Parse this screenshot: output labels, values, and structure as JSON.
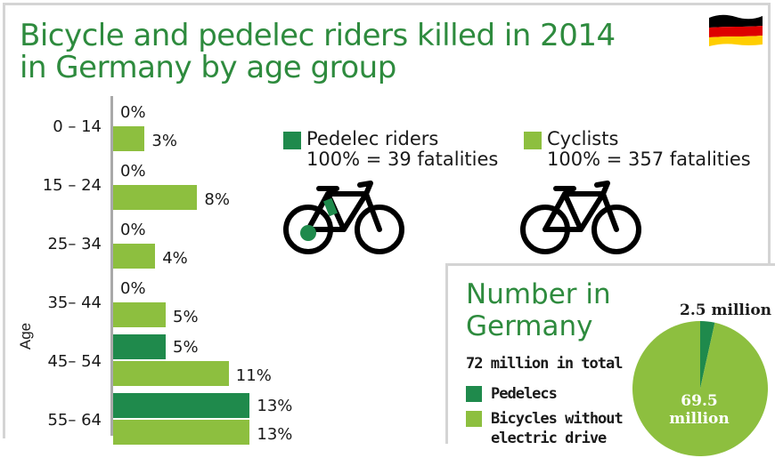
{
  "title_lines": [
    "Bicycle and pedelec riders killed in 2014",
    "in Germany by age group"
  ],
  "colors": {
    "pedelec": "#1f8a4c",
    "cyclist": "#8dbf3f",
    "title": "#2e8b3e"
  },
  "chart_data": {
    "type": "bar",
    "orientation": "horizontal",
    "ylabel": "Age",
    "unit": "%",
    "categories": [
      "0 – 14",
      "15 – 24",
      "25– 34",
      "35– 44",
      "45– 54",
      "55– 64"
    ],
    "series": [
      {
        "name": "Pedelec riders",
        "values": [
          0,
          0,
          0,
          0,
          5,
          13
        ]
      },
      {
        "name": "Cyclists",
        "values": [
          3,
          8,
          4,
          5,
          11,
          13
        ]
      }
    ],
    "value_labels": {
      "pedelec": [
        "0%",
        "0%",
        "0%",
        "0%",
        "5%",
        "13%"
      ],
      "cyclist": [
        "3%",
        "8%",
        "4%",
        "5%",
        "11%",
        "13%"
      ]
    }
  },
  "legend": {
    "pedelec": {
      "label": "Pedelec riders",
      "note": "100% = 39 fatalities",
      "icon": "pedelec-bike-icon"
    },
    "cyclist": {
      "label": "Cyclists",
      "note": "100% = 357 fatalities",
      "icon": "bicycle-icon"
    }
  },
  "flag": {
    "icon": "germany-flag-icon",
    "colors": [
      "#000000",
      "#dd0000",
      "#ffce00"
    ]
  },
  "inset": {
    "title_lines": [
      "Number in",
      "Germany"
    ],
    "total": "72 million in total",
    "legend_pedelec": "Pedelecs",
    "legend_bicycles": "Bicycles without",
    "legend_bicycles_2": "electric drive",
    "pie": {
      "type": "pie",
      "values": [
        2.5,
        69.5
      ],
      "labels": [
        "2.5 million",
        "69.5 million"
      ],
      "label_big_1": "69.5",
      "label_big_2": "million"
    }
  }
}
